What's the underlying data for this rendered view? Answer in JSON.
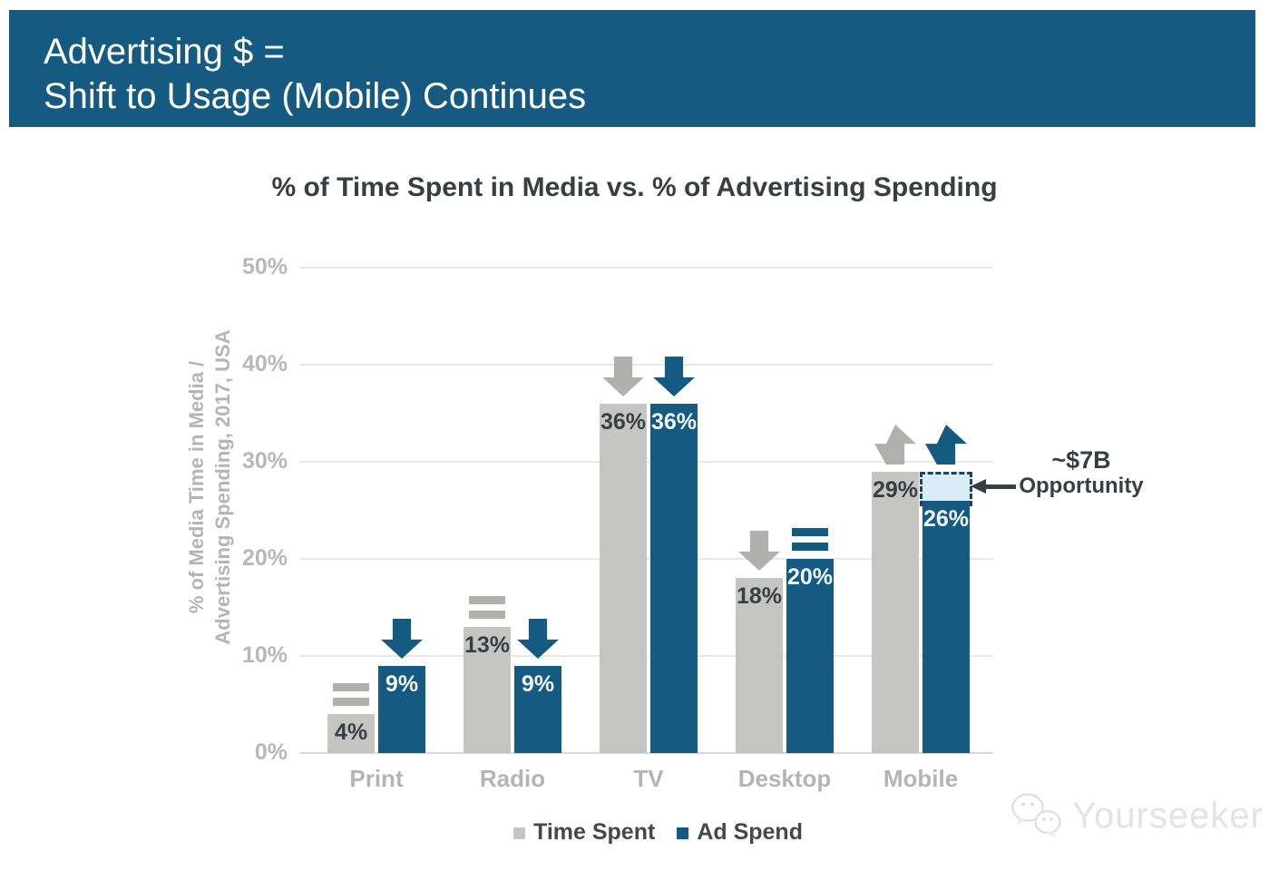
{
  "header": {
    "line1": "Advertising $ =",
    "line2": "Shift to Usage (Mobile) Continues",
    "bg_color": "#155a80",
    "text_color": "#ffffff"
  },
  "watermark": {
    "brand": "Yourseeker",
    "icon": "wechat-bubbles-icon"
  },
  "chart_data": {
    "type": "bar",
    "title": "% of Time Spent in Media vs. % of Advertising Spending",
    "ylabel_lines": [
      "% of Media Time in Media /",
      "Advertising Spending, 2017, USA"
    ],
    "categories": [
      "Print",
      "Radio",
      "TV",
      "Desktop",
      "Mobile"
    ],
    "series": [
      {
        "name": "Time Spent",
        "color": "#c5c5c3",
        "icon_color": "#b0b0ae",
        "label_color": "#3a3e42",
        "values": [
          4,
          13,
          36,
          18,
          29
        ],
        "trends": [
          "equal",
          "equal",
          "down",
          "down",
          "up"
        ]
      },
      {
        "name": "Ad Spend",
        "color": "#155a80",
        "icon_color": "#155a80",
        "label_color": "#eef6fc",
        "values": [
          9,
          9,
          36,
          20,
          26
        ],
        "trends": [
          "down",
          "down",
          "down",
          "equal",
          "up"
        ]
      }
    ],
    "value_suffix": "%",
    "yticks": [
      0,
      10,
      20,
      30,
      40,
      50
    ],
    "ytick_suffix": "%",
    "ylim": [
      0,
      50
    ],
    "grid": true,
    "legend_position": "bottom",
    "annotation": {
      "text_line1": "~$7B",
      "text_line2": "Opportunity",
      "category": "Mobile",
      "series": "Ad Spend",
      "gap_from": 26,
      "gap_to": 29,
      "box_fill": "#d9ecf7",
      "box_border": "#23425f",
      "arrow_color": "#3a3e42"
    }
  }
}
